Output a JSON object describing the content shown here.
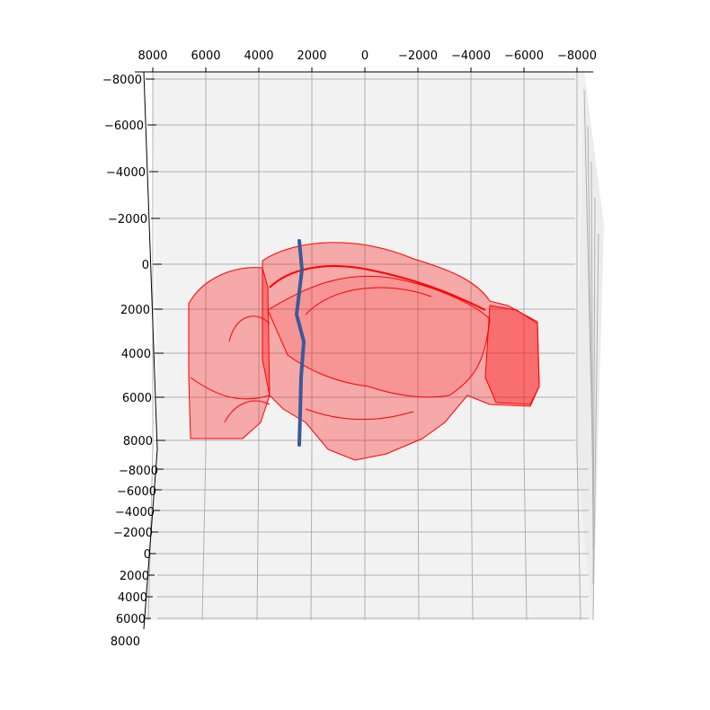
{
  "chart_data": {
    "type": "3d-surface",
    "title": "",
    "grid": true,
    "pane_color": "#f2f2f2",
    "grid_color": "#b0b0b0",
    "axes": {
      "top": {
        "ticks": [
          "8000",
          "6000",
          "4000",
          "2000",
          "0",
          "−2000",
          "−4000",
          "−6000",
          "−8000"
        ]
      },
      "left_vertical": {
        "ticks": [
          "−8000",
          "−6000",
          "−4000",
          "−2000",
          "0",
          "2000",
          "4000",
          "6000",
          "8000"
        ]
      },
      "left_depth": {
        "ticks": [
          "−8000",
          "−6000",
          "−4000",
          "−2000",
          "0",
          "2000",
          "4000",
          "6000",
          "8000"
        ]
      }
    },
    "series": [
      {
        "kind": "brain-surface",
        "color": "#ff0000",
        "fill_opacity": 0.32
      },
      {
        "kind": "probe-track",
        "color": "#3b5998",
        "x": 2100,
        "y_range": [
          -800,
          8000
        ]
      }
    ]
  }
}
